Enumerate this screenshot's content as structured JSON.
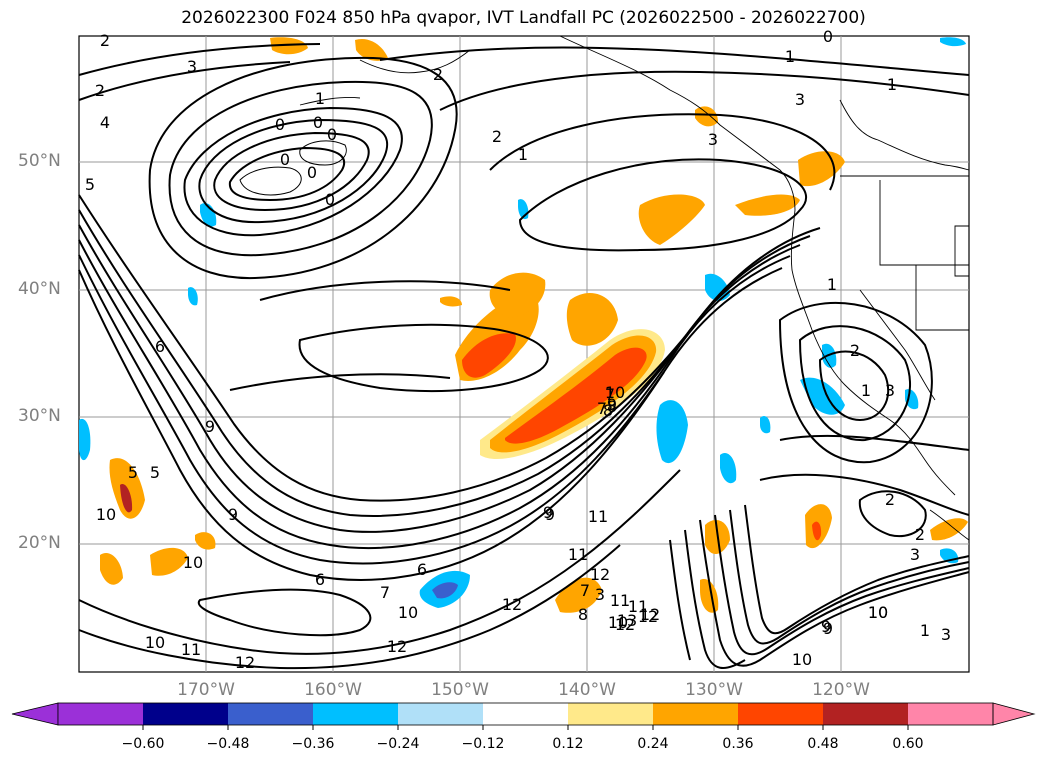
{
  "title": "2026022300 F024 850 hPa qvapor, IVT Landfall PC (2026022500 - 2026022700)",
  "lat_labels": [
    "50°N",
    "40°N",
    "30°N",
    "20°N"
  ],
  "lon_labels": [
    "170°W",
    "160°W",
    "150°W",
    "140°W",
    "130°W",
    "120°W"
  ],
  "colorbar": {
    "colors": [
      "#9b30d8",
      "#00008b",
      "#3a5fcd",
      "#00bfff",
      "#b0e0f8",
      "#ffffff",
      "#ffe98a",
      "#ffa500",
      "#ff4500",
      "#b22222",
      "#ff85a9"
    ],
    "tick_labels": [
      "−0.60",
      "−0.48",
      "−0.36",
      "−0.24",
      "−0.12",
      "0.12",
      "0.24",
      "0.36",
      "0.48",
      "0.60"
    ]
  },
  "contour_labels": [
    "2",
    "3",
    "2",
    "4",
    "5",
    "1",
    "0",
    "0",
    "0",
    "0",
    "0",
    "0",
    "2",
    "1",
    "3",
    "1",
    "0",
    "1",
    "2",
    "3",
    "6",
    "7",
    "8",
    "9",
    "9",
    "10",
    "11",
    "12",
    "10",
    "12",
    "11",
    "12",
    "10",
    "6",
    "7",
    "9",
    "12",
    "10",
    "11",
    "12",
    "10",
    "9",
    "10",
    "9",
    "1",
    "2",
    "3",
    "2",
    "3",
    "1",
    "3",
    "2",
    "3",
    "1",
    "6",
    "7",
    "8",
    "9",
    "10",
    "11",
    "12",
    "13",
    "10",
    "11",
    "12",
    "10",
    "5",
    "5",
    "7",
    "8",
    "9"
  ]
}
